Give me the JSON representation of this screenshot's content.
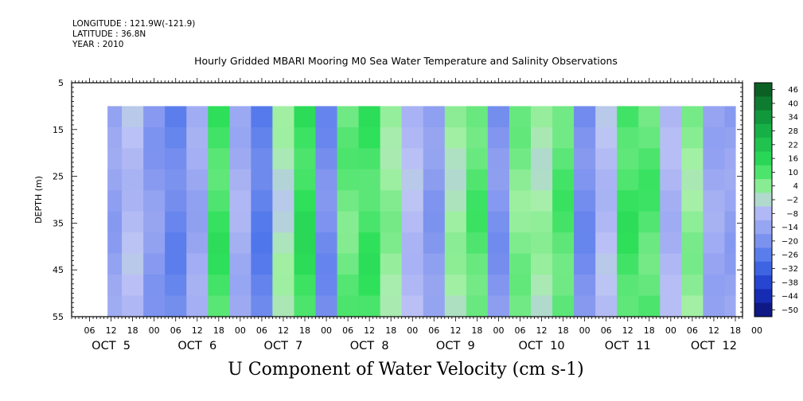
{
  "header": {
    "longitude": "LONGITUDE : 121.9W(-121.9)",
    "latitude": "LATITUDE : 36.8N",
    "year": "YEAR : 2010"
  },
  "chart_data": {
    "type": "heatmap",
    "title": "Hourly Gridded MBARI Mooring M0 Sea Water Temperature and Salinity Observations",
    "xlabel": "U Component of Water Velocity (cm s-1)",
    "ylabel": "DEPTH (m)",
    "ylim": [
      55,
      5
    ],
    "yticks": [
      5,
      15,
      25,
      35,
      45,
      55
    ],
    "data_depth_range": [
      10,
      55
    ],
    "data_time_range": [
      "2010-10-05T11:00",
      "2010-10-12T18:00"
    ],
    "xticks_hours": [
      "06",
      "12",
      "18",
      "00",
      "06",
      "12",
      "18",
      "00",
      "06",
      "12",
      "18",
      "00",
      "06",
      "12",
      "18",
      "00",
      "06",
      "12",
      "18",
      "00",
      "06",
      "12",
      "18",
      "00",
      "06",
      "12",
      "18",
      "00",
      "06",
      "12",
      "18",
      "00"
    ],
    "day_labels": [
      "OCT 5",
      "OCT 6",
      "OCT 7",
      "OCT 8",
      "OCT 9",
      "OCT 10",
      "OCT 11",
      "OCT 12"
    ],
    "day_label_dates": [
      "2010-10-05T12:00",
      "2010-10-06T12:00",
      "2010-10-07T12:00",
      "2010-10-08T12:00",
      "2010-10-09T12:00",
      "2010-10-10T12:00",
      "2010-10-11T12:00",
      "2010-10-12T12:00"
    ],
    "colorbar": {
      "levels": [
        46,
        40,
        34,
        28,
        22,
        16,
        10,
        4,
        -2,
        -8,
        -14,
        -20,
        -26,
        -32,
        -38,
        -44,
        -50
      ],
      "range": [
        -50,
        50
      ]
    },
    "approx_band_values_cm_s": [
      {
        "date": "2010-10-05T12:00",
        "value": -12
      },
      {
        "date": "2010-10-05T18:00",
        "value": -4
      },
      {
        "date": "2010-10-06T00:00",
        "value": -14
      },
      {
        "date": "2010-10-06T06:00",
        "value": -20
      },
      {
        "date": "2010-10-06T12:00",
        "value": -10
      },
      {
        "date": "2010-10-06T18:00",
        "value": 14
      },
      {
        "date": "2010-10-07T00:00",
        "value": -8
      },
      {
        "date": "2010-10-07T06:00",
        "value": -22
      },
      {
        "date": "2010-10-07T12:00",
        "value": 2
      },
      {
        "date": "2010-10-07T18:00",
        "value": 16
      },
      {
        "date": "2010-10-08T00:00",
        "value": -18
      },
      {
        "date": "2010-10-08T06:00",
        "value": 10
      },
      {
        "date": "2010-10-08T12:00",
        "value": 14
      },
      {
        "date": "2010-10-08T18:00",
        "value": 6
      },
      {
        "date": "2010-10-09T00:00",
        "value": -4
      },
      {
        "date": "2010-10-09T06:00",
        "value": -14
      },
      {
        "date": "2010-10-09T12:00",
        "value": 4
      },
      {
        "date": "2010-10-09T18:00",
        "value": 12
      },
      {
        "date": "2010-10-10T00:00",
        "value": -16
      },
      {
        "date": "2010-10-10T06:00",
        "value": 8
      },
      {
        "date": "2010-10-10T12:00",
        "value": 4
      },
      {
        "date": "2010-10-10T18:00",
        "value": 12
      },
      {
        "date": "2010-10-11T00:00",
        "value": -18
      },
      {
        "date": "2010-10-11T06:00",
        "value": -4
      },
      {
        "date": "2010-10-11T12:00",
        "value": 14
      },
      {
        "date": "2010-10-11T18:00",
        "value": 12
      },
      {
        "date": "2010-10-12T00:00",
        "value": -6
      },
      {
        "date": "2010-10-12T06:00",
        "value": 6
      },
      {
        "date": "2010-10-12T12:00",
        "value": -10
      },
      {
        "date": "2010-10-12T18:00",
        "value": -12
      }
    ]
  }
}
